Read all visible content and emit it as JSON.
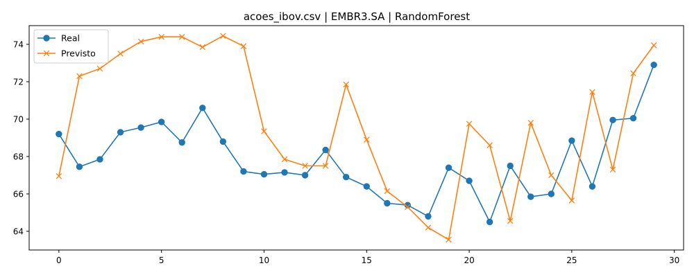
{
  "chart_data": {
    "type": "line",
    "title": "acoes_ibov.csv | EMBR3.SA | RandomForest",
    "xlabel": "",
    "ylabel": "",
    "xlim": [
      -1.45,
      30.45
    ],
    "ylim": [
      63.0,
      75.0
    ],
    "xticks": [
      0,
      5,
      10,
      15,
      20,
      25,
      30
    ],
    "yticks": [
      64,
      66,
      68,
      70,
      72,
      74
    ],
    "grid": false,
    "legend_position": "top-left",
    "x": [
      0,
      1,
      2,
      3,
      4,
      5,
      6,
      7,
      8,
      9,
      10,
      11,
      12,
      13,
      14,
      15,
      16,
      17,
      18,
      19,
      20,
      21,
      22,
      23,
      24,
      25,
      26,
      27,
      28,
      29
    ],
    "series": [
      {
        "name": "Real",
        "marker": "circle",
        "color": "#1f77b4",
        "values": [
          69.2,
          67.45,
          67.85,
          69.3,
          69.55,
          69.85,
          68.75,
          70.6,
          68.8,
          67.2,
          67.05,
          67.15,
          67.0,
          68.35,
          66.9,
          66.4,
          65.5,
          65.4,
          64.8,
          67.4,
          66.7,
          64.5,
          67.5,
          65.85,
          66.0,
          68.85,
          66.4,
          69.95,
          70.05,
          72.9
        ]
      },
      {
        "name": "Previsto",
        "marker": "x",
        "color": "#ff7f0e",
        "values": [
          66.95,
          72.3,
          72.7,
          73.5,
          74.15,
          74.4,
          74.4,
          73.85,
          74.45,
          73.9,
          69.35,
          67.85,
          67.5,
          67.5,
          71.85,
          68.9,
          66.15,
          65.3,
          64.2,
          63.55,
          69.75,
          68.6,
          64.55,
          69.8,
          67.0,
          65.65,
          71.45,
          67.3,
          72.45,
          73.95
        ]
      }
    ]
  }
}
